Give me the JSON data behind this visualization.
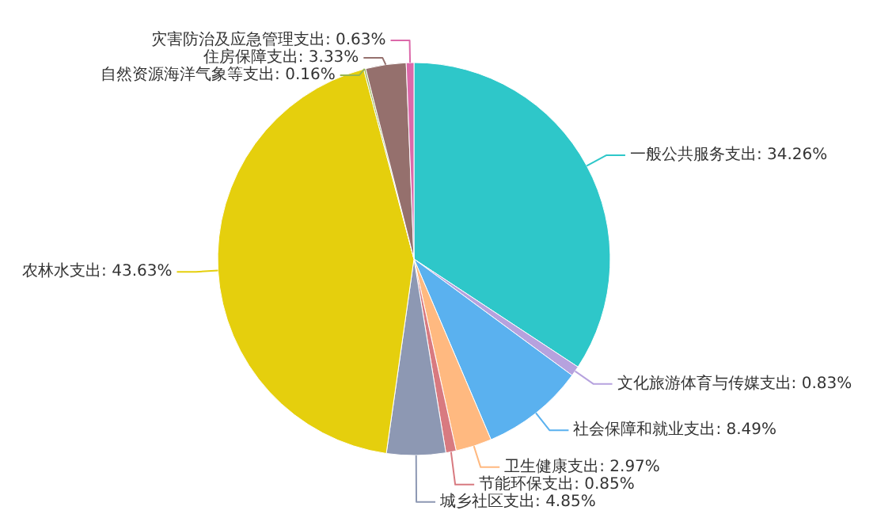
{
  "chart_data": {
    "type": "pie",
    "categories": [
      "一般公共服务支出",
      "文化旅游体育与传媒支出",
      "社会保障和就业支出",
      "卫生健康支出",
      "节能环保支出",
      "城乡社区支出",
      "农林水支出",
      "自然资源海洋气象等支出",
      "住房保障支出",
      "灾害防治及应急管理支出"
    ],
    "values": [
      34.26,
      0.83,
      8.49,
      2.97,
      0.85,
      4.85,
      43.63,
      0.16,
      3.33,
      0.63
    ],
    "value_labels": [
      "34.26%",
      "0.83%",
      "8.49%",
      "2.97%",
      "0.85%",
      "4.85%",
      "43.63%",
      "0.16%",
      "3.33%",
      "0.63%"
    ],
    "colors": [
      "#2ec7c9",
      "#b6a2de",
      "#5ab1ef",
      "#ffb980",
      "#d87a80",
      "#8d98b3",
      "#e5cf0d",
      "#97b552",
      "#95706d",
      "#dc69aa"
    ]
  }
}
